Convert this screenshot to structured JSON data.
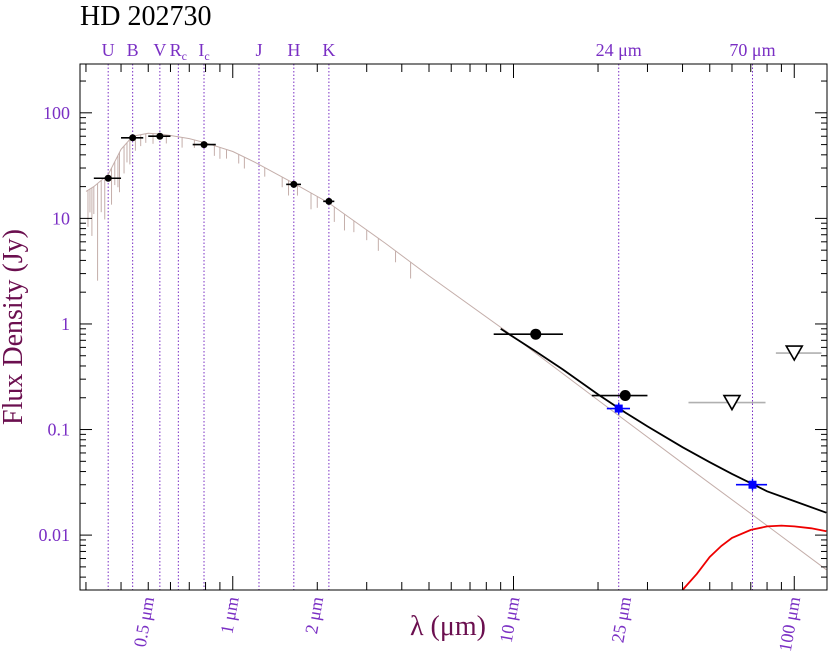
{
  "chart_data": {
    "type": "scatter",
    "title": "HD 202730",
    "xlabel": "λ (μm)",
    "ylabel": "Flux Density (Jy)",
    "x_scale": "log",
    "y_scale": "log",
    "xlim": [
      0.2857,
      130.8
    ],
    "ylim": [
      0.00302,
      290
    ],
    "y_ticks": [
      {
        "value": 100,
        "label": "100"
      },
      {
        "value": 10,
        "label": "10"
      },
      {
        "value": 1,
        "label": "1"
      },
      {
        "value": 0.1,
        "label": "0.1"
      },
      {
        "value": 0.01,
        "label": "0.01"
      }
    ],
    "x_ticks": [
      {
        "value": 0.5,
        "label": "0.5 μm"
      },
      {
        "value": 1,
        "label": "1 μm"
      },
      {
        "value": 2,
        "label": "2 μm"
      },
      {
        "value": 10,
        "label": "10 μm"
      },
      {
        "value": 25,
        "label": "25 μm"
      },
      {
        "value": 100,
        "label": "100 μm"
      }
    ],
    "bands": [
      {
        "label": "U",
        "sub": "",
        "x": 0.36
      },
      {
        "label": "B",
        "sub": "",
        "x": 0.44
      },
      {
        "label": "V",
        "sub": "",
        "x": 0.55
      },
      {
        "label": "R",
        "sub": "c",
        "x": 0.64
      },
      {
        "label": "I",
        "sub": "c",
        "x": 0.79
      },
      {
        "label": "J",
        "sub": "",
        "x": 1.24
      },
      {
        "label": "H",
        "sub": "",
        "x": 1.65
      },
      {
        "label": "K",
        "sub": "",
        "x": 2.2
      },
      {
        "label": "24 μm",
        "sub": "",
        "x": 23.7
      },
      {
        "label": "70 μm",
        "sub": "",
        "x": 71
      }
    ],
    "series": [
      {
        "marker": "filled-circle-small",
        "color": "#000000",
        "points": [
          {
            "x": 0.36,
            "y": 24,
            "xerr": [
              0.32,
              0.4
            ]
          },
          {
            "x": 0.44,
            "y": 58,
            "xerr": [
              0.4,
              0.48
            ]
          },
          {
            "x": 0.55,
            "y": 60,
            "xerr": [
              0.5,
              0.6
            ]
          },
          {
            "x": 0.79,
            "y": 50,
            "xerr": [
              0.72,
              0.87
            ]
          },
          {
            "x": 1.65,
            "y": 21,
            "xerr": [
              1.55,
              1.75
            ]
          },
          {
            "x": 2.2,
            "y": 14.5,
            "xerr": [
              2.1,
              2.3
            ]
          }
        ]
      },
      {
        "marker": "filled-circle-large",
        "color": "#000000",
        "points": [
          {
            "x": 12,
            "y": 0.8,
            "xerr": [
              8.5,
              15
            ]
          },
          {
            "x": 25,
            "y": 0.21,
            "xerr": [
              19,
              30
            ]
          }
        ]
      },
      {
        "marker": "filled-square",
        "color": "#0000ff",
        "points": [
          {
            "x": 23.7,
            "y": 0.158,
            "xerr": [
              21.5,
              26
            ]
          },
          {
            "x": 71,
            "y": 0.03,
            "xerr": [
              62,
              80
            ]
          }
        ]
      },
      {
        "marker": "open-triangle-down",
        "color": "#000000",
        "points": [
          {
            "x": 60,
            "y": 0.18,
            "xerr": [
              42,
              79
            ]
          },
          {
            "x": 100,
            "y": 0.53,
            "xerr": [
              86,
              125
            ]
          }
        ]
      }
    ],
    "curves": [
      {
        "kind": "photosphere-model-spectrum",
        "color": "#c4aeaa",
        "points": [
          [
            0.3,
            18
          ],
          [
            0.32,
            20
          ],
          [
            0.36,
            26
          ],
          [
            0.4,
            45
          ],
          [
            0.44,
            60
          ],
          [
            0.5,
            64
          ],
          [
            0.55,
            63
          ],
          [
            0.6,
            61
          ],
          [
            0.7,
            57
          ],
          [
            0.8,
            52
          ],
          [
            1.0,
            43
          ],
          [
            1.2,
            34
          ],
          [
            1.65,
            21.5
          ],
          [
            2.2,
            14
          ],
          [
            3.5,
            5.8
          ],
          [
            5,
            2.85
          ],
          [
            10,
            0.76
          ],
          [
            20,
            0.19
          ],
          [
            40,
            0.048
          ],
          [
            80,
            0.0123
          ],
          [
            130,
            0.0047
          ]
        ]
      },
      {
        "kind": "total-model",
        "color": "#000000",
        "points": [
          [
            9,
            0.9
          ],
          [
            12,
            0.55
          ],
          [
            15,
            0.37
          ],
          [
            20,
            0.215
          ],
          [
            25,
            0.145
          ],
          [
            30,
            0.107
          ],
          [
            40,
            0.068
          ],
          [
            50,
            0.049
          ],
          [
            60,
            0.038
          ],
          [
            70,
            0.031
          ],
          [
            80,
            0.026
          ],
          [
            100,
            0.021
          ],
          [
            130,
            0.0163
          ]
        ]
      },
      {
        "kind": "dust-excess-blackbody",
        "color": "#ee0000",
        "points": [
          [
            40,
            0.0024
          ],
          [
            45,
            0.0043
          ],
          [
            50,
            0.0062
          ],
          [
            55,
            0.0079
          ],
          [
            60,
            0.0094
          ],
          [
            70,
            0.0112
          ],
          [
            80,
            0.0121
          ],
          [
            90,
            0.0123
          ],
          [
            100,
            0.0121
          ],
          [
            115,
            0.0116
          ],
          [
            130,
            0.0109
          ]
        ]
      }
    ],
    "colors": {
      "title": "#000000",
      "axis_label": "#6b0f4f",
      "tick_label": "#7a2fc4",
      "band_line": "#7a2fc4",
      "axis": "#000000"
    }
  }
}
